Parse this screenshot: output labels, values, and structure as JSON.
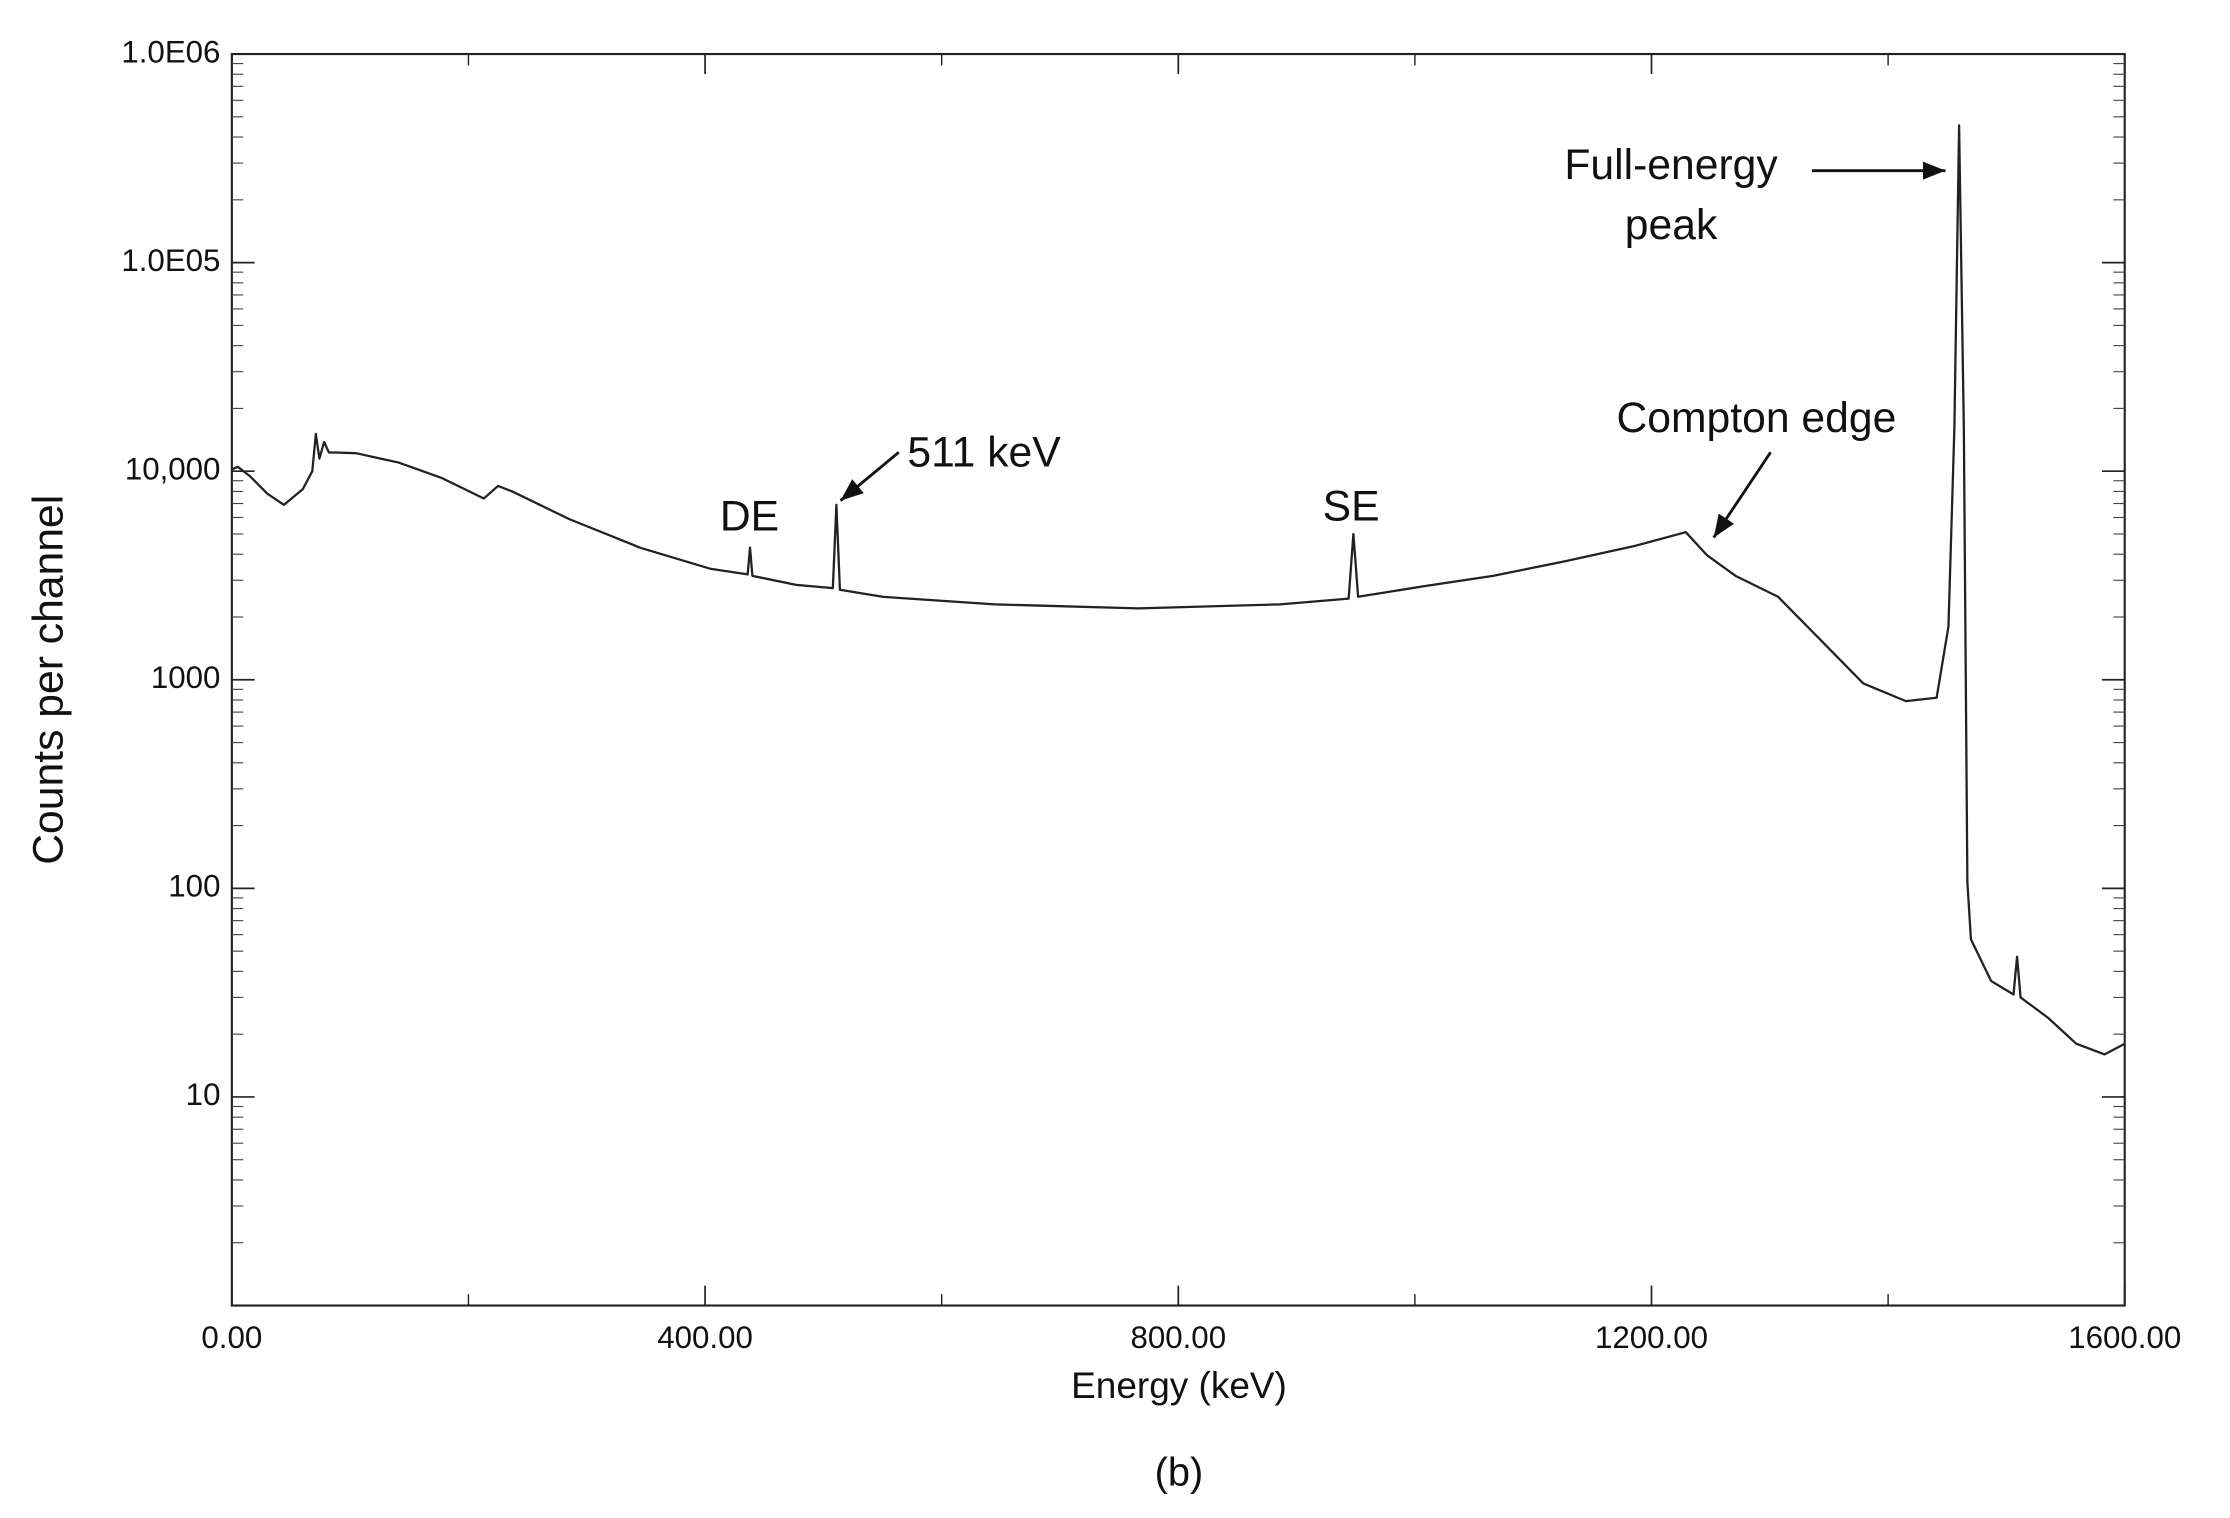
{
  "chart_data": {
    "type": "line",
    "xlabel": "Energy (keV)",
    "ylabel": "Counts per channel",
    "caption": "(b)",
    "annotations": [
      "Full-energy",
      "peak",
      "Compton edge",
      "511 keV",
      "DE",
      "SE"
    ],
    "x": [
      0,
      5,
      15,
      30,
      44,
      60,
      68,
      71,
      74,
      78,
      82,
      87,
      105,
      141,
      177,
      213,
      225,
      237,
      285,
      345,
      405,
      436,
      438,
      440,
      477,
      508,
      511,
      514,
      550,
      645,
      766,
      886,
      944,
      948,
      952,
      1006,
      1066,
      1127,
      1187,
      1229,
      1247,
      1271,
      1307,
      1343,
      1379,
      1415,
      1441,
      1451,
      1456,
      1460,
      1464,
      1467,
      1470,
      1487,
      1506,
      1509,
      1512,
      1535,
      1559,
      1583,
      1600
    ],
    "values": [
      10200,
      10500,
      9500,
      7800,
      6900,
      8200,
      10000,
      15100,
      11500,
      13800,
      12300,
      12300,
      12200,
      11000,
      9300,
      7400,
      8500,
      8000,
      5900,
      4300,
      3400,
      3200,
      4300,
      3150,
      2850,
      2750,
      6900,
      2700,
      2500,
      2300,
      2200,
      2300,
      2450,
      5000,
      2500,
      2800,
      3150,
      3700,
      4400,
      5100,
      3950,
      3150,
      2500,
      1550,
      960,
      790,
      820,
      1800,
      16000,
      455000,
      16000,
      107,
      57,
      36,
      31,
      47,
      30,
      24,
      18,
      16,
      18
    ],
    "color": "#222222",
    "xlim": [
      0,
      1600
    ],
    "xticks": [
      {
        "value": 0,
        "label": "0.00"
      },
      {
        "value": 400,
        "label": "400.00"
      },
      {
        "value": 800,
        "label": "800.00"
      },
      {
        "value": 1200,
        "label": "1200.00"
      },
      {
        "value": 1600,
        "label": "1600.00"
      }
    ],
    "ylim": [
      1,
      1000000
    ],
    "ylog": true,
    "yticks": [
      10,
      100,
      1000,
      {
        "value": 10000,
        "label": "10,000"
      },
      {
        "value": 100000,
        "label": "1.0E05"
      },
      {
        "value": 1000000,
        "label": "1.0E06"
      }
    ]
  }
}
